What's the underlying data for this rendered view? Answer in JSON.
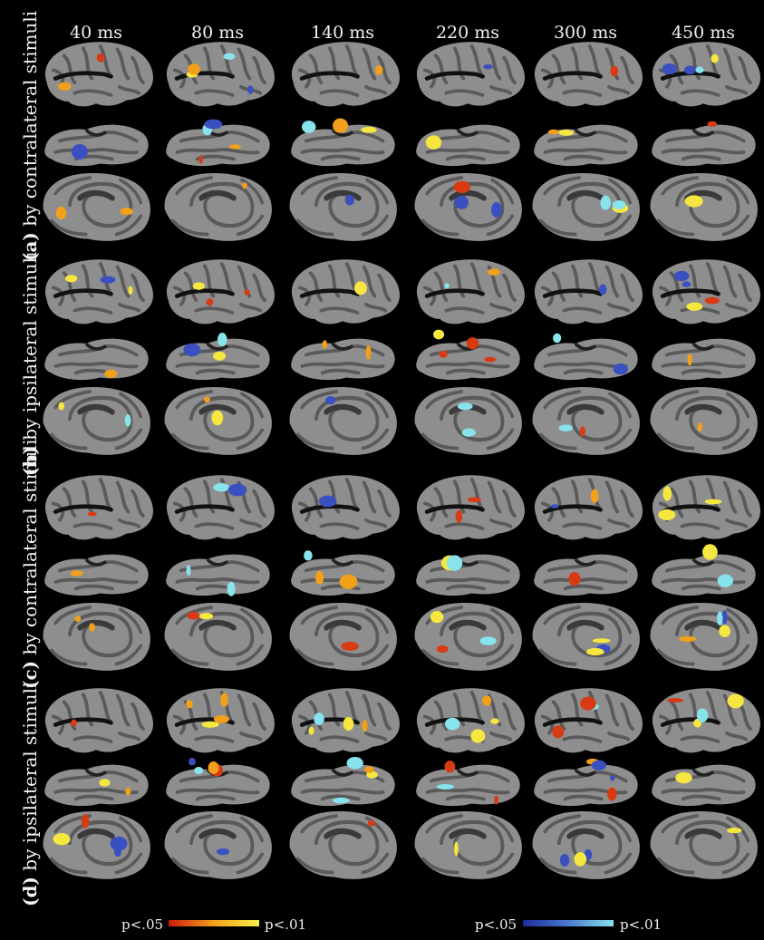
{
  "timepoints": [
    "40 ms",
    "80 ms",
    "140 ms",
    "220 ms",
    "300 ms",
    "450 ms"
  ],
  "panels": [
    {
      "letter": "(a)",
      "label": "by contralateral stimuli"
    },
    {
      "letter": "(b)",
      "label": "by ipsilateral stimuli"
    },
    {
      "letter": "(c)",
      "label": "by contralateral stimuli"
    },
    {
      "letter": "(d)",
      "label": "by ipsilateral stimuli"
    }
  ],
  "legend": {
    "warm": {
      "low": "p<.05",
      "high": "p<.01",
      "colors": [
        "#cc1a10",
        "#f2a01a",
        "#f6f04a"
      ]
    },
    "cool": {
      "low": "p<.05",
      "high": "p<.01",
      "colors": [
        "#1e2a9a",
        "#4a7ad0",
        "#88e4ec"
      ]
    }
  },
  "colors": {
    "background": "#000000",
    "cortex_gyri": "#8e8e8e",
    "cortex_sulci": "#5a5a5a"
  }
}
